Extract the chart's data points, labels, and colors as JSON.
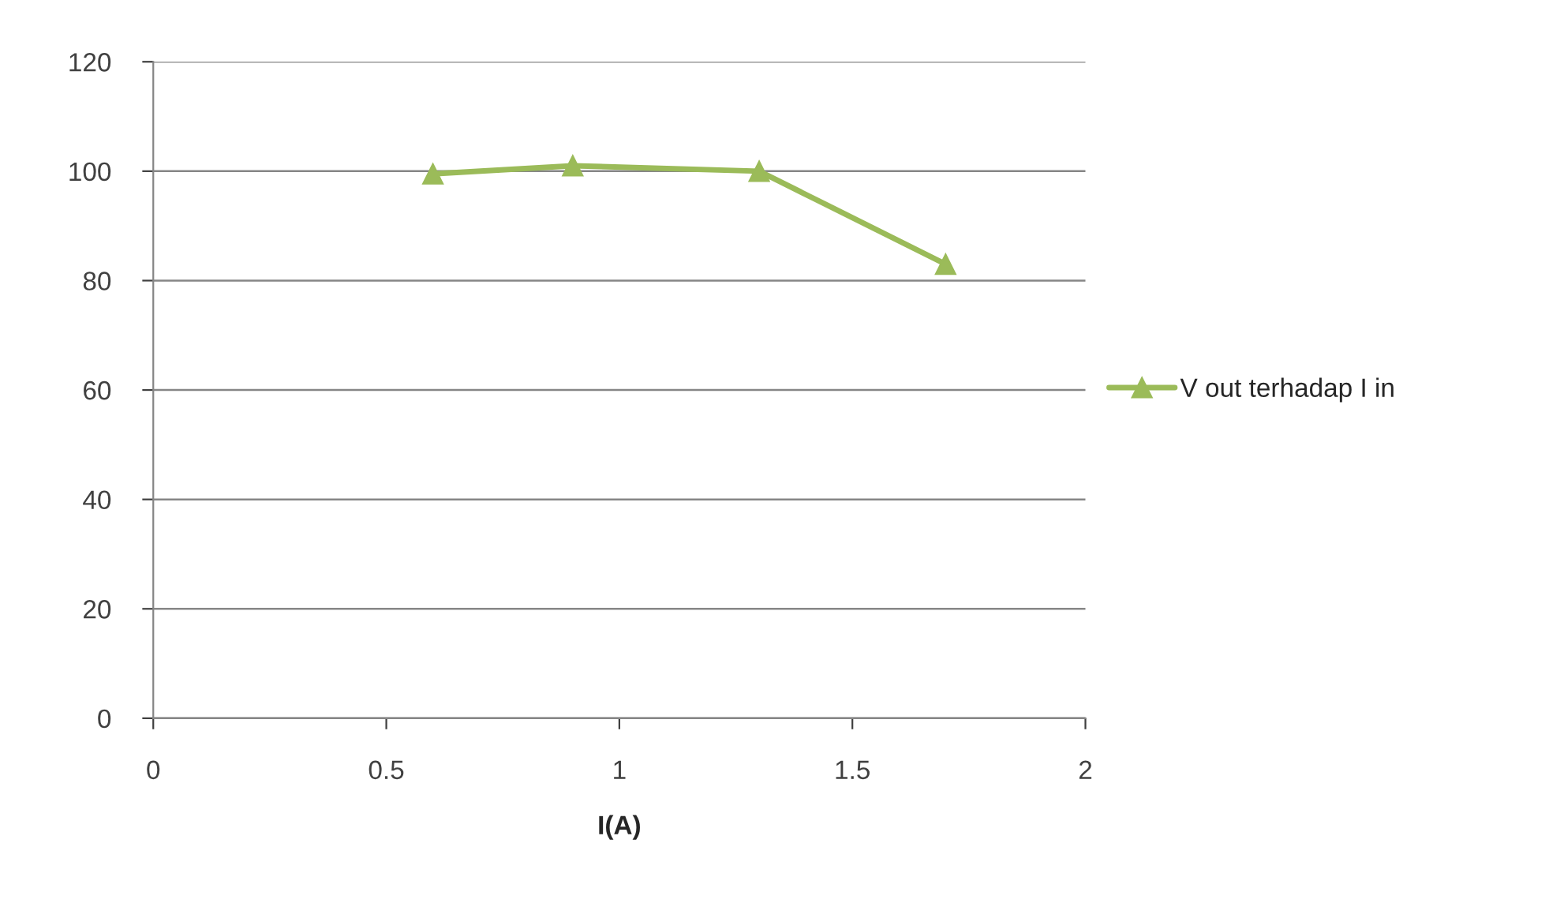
{
  "chart_data": {
    "type": "line",
    "xlabel": "I(A)",
    "x": [
      0.6,
      0.9,
      1.3,
      1.7
    ],
    "series": [
      {
        "name": "V out terhadap I in",
        "color": "#9bbb59",
        "values": [
          99.5,
          101,
          100,
          83
        ]
      }
    ],
    "xlim": [
      0,
      2
    ],
    "xticks": [
      0,
      {
        "value": 0.5,
        "label": "0.5"
      },
      1,
      {
        "value": 1.5,
        "label": "1.5"
      },
      2
    ],
    "ylim": [
      0,
      120
    ],
    "yticks": [
      0,
      20,
      40,
      60,
      80,
      100,
      120
    ],
    "grid": "y",
    "legend": "right",
    "marker": "triangle",
    "line_style": "solid"
  }
}
